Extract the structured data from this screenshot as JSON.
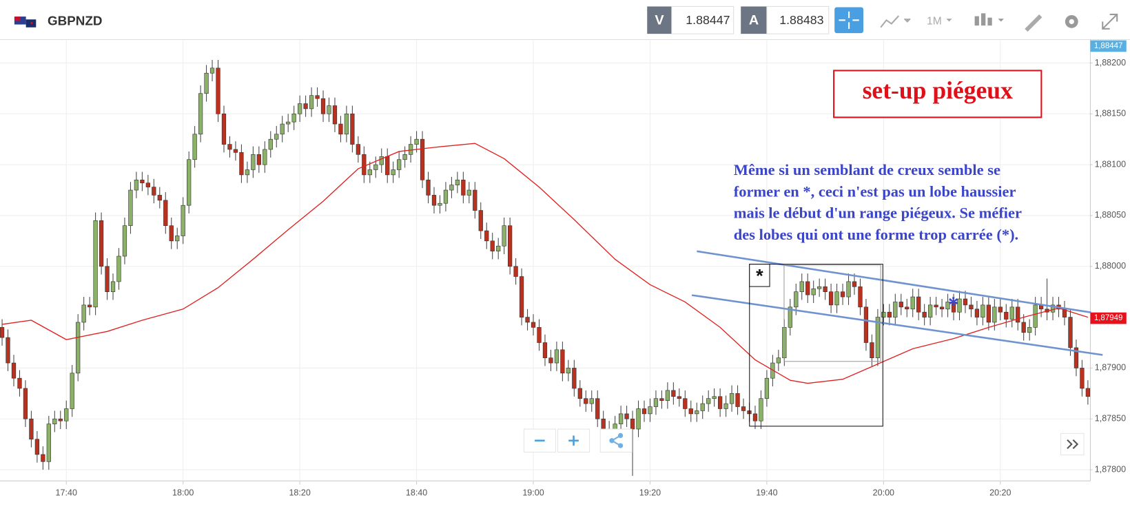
{
  "toolbar": {
    "symbol": "GBPNZD",
    "bid_label": "V",
    "bid": 1.88447,
    "ask_label": "A",
    "ask": 1.88483,
    "timeframe": "1M"
  },
  "chart_data": {
    "type": "candlestick",
    "title": "set-up piégeux",
    "annotation_lines": [
      "Même si un semblant de creux semble se",
      "former en *, ceci n'est pas un lobe haussier",
      "mais le début d'un range piégeux.  Se méfier",
      "des lobes qui ont une forme trop carrée (*)."
    ],
    "box_marker": "*",
    "blue_marker": "*",
    "up_color": "#8cb26a",
    "down_color": "#b8321f",
    "grid": true,
    "xlim": [
      1048.64,
      1235.3
    ],
    "ylim": [
      1.87789,
      1.88223
    ],
    "xticks": [
      {
        "value": 1060,
        "label": "17:40"
      },
      {
        "value": 1080,
        "label": "18:00"
      },
      {
        "value": 1100,
        "label": "18:20"
      },
      {
        "value": 1120,
        "label": "18:40"
      },
      {
        "value": 1140,
        "label": "19:00"
      },
      {
        "value": 1160,
        "label": "19:20"
      },
      {
        "value": 1180,
        "label": "19:40"
      },
      {
        "value": 1200,
        "label": "20:00"
      },
      {
        "value": 1220,
        "label": "20:20"
      }
    ],
    "yticks": [
      {
        "value": 1.882,
        "label": "1,88200"
      },
      {
        "value": 1.8815,
        "label": "1,88150"
      },
      {
        "value": 1.881,
        "label": "1,88100"
      },
      {
        "value": 1.8805,
        "label": "1,88050"
      },
      {
        "value": 1.88,
        "label": "1,88000"
      },
      {
        "value": 1.879,
        "label": "1,87900"
      },
      {
        "value": 1.8785,
        "label": "1,87850"
      },
      {
        "value": 1.878,
        "label": "1,87800"
      }
    ],
    "price_tags": [
      {
        "value": 1.88447,
        "label": "1,88447",
        "color": "#5aaee0"
      },
      {
        "value": 1.87949,
        "label": "1,87949",
        "color": "#e8101a"
      }
    ],
    "x": [
      1049,
      1050,
      1051,
      1052,
      1053,
      1054,
      1055,
      1056,
      1057,
      1058,
      1059,
      1060,
      1061,
      1062,
      1063,
      1064,
      1065,
      1066,
      1067,
      1068,
      1069,
      1070,
      1071,
      1072,
      1073,
      1074,
      1075,
      1076,
      1077,
      1078,
      1079,
      1080,
      1081,
      1082,
      1083,
      1084,
      1085,
      1086,
      1087,
      1088,
      1089,
      1090,
      1091,
      1092,
      1093,
      1094,
      1095,
      1096,
      1097,
      1098,
      1099,
      1100,
      1101,
      1102,
      1103,
      1104,
      1105,
      1106,
      1107,
      1108,
      1109,
      1110,
      1111,
      1112,
      1113,
      1114,
      1115,
      1116,
      1117,
      1118,
      1119,
      1120,
      1121,
      1122,
      1123,
      1124,
      1125,
      1126,
      1127,
      1128,
      1129,
      1130,
      1131,
      1132,
      1133,
      1134,
      1135,
      1136,
      1137,
      1138,
      1139,
      1140,
      1141,
      1142,
      1143,
      1144,
      1145,
      1146,
      1147,
      1148,
      1149,
      1150,
      1151,
      1152,
      1153,
      1154,
      1155,
      1156,
      1157,
      1158,
      1159,
      1160,
      1161,
      1162,
      1163,
      1164,
      1165,
      1166,
      1167,
      1168,
      1169,
      1170,
      1171,
      1172,
      1173,
      1174,
      1175,
      1176,
      1177,
      1178,
      1179,
      1180,
      1181,
      1182,
      1183,
      1184,
      1185,
      1186,
      1187,
      1188,
      1189,
      1190,
      1191,
      1192,
      1193,
      1194,
      1195,
      1196,
      1197,
      1198,
      1199,
      1200,
      1201,
      1202,
      1203,
      1204,
      1205,
      1206,
      1207,
      1208,
      1209,
      1210,
      1211,
      1212,
      1213,
      1214,
      1215,
      1216,
      1217,
      1218,
      1219,
      1220,
      1221,
      1222,
      1223,
      1224,
      1225,
      1226,
      1227,
      1228,
      1229,
      1230,
      1231,
      1232,
      1233,
      1234,
      1235
    ],
    "open": [
      1.8794,
      1.8793,
      1.87905,
      1.8789,
      1.8788,
      1.8785,
      1.8783,
      1.87815,
      1.87808,
      1.87845,
      1.8785,
      1.87848,
      1.8786,
      1.87895,
      1.87945,
      1.87962,
      1.8796,
      1.88045,
      1.88,
      1.87975,
      1.87985,
      1.8801,
      1.8804,
      1.88075,
      1.88085,
      1.88082,
      1.88078,
      1.8807,
      1.88065,
      1.8804,
      1.88025,
      1.8803,
      1.8806,
      1.88105,
      1.8813,
      1.8817,
      1.8819,
      1.88195,
      1.8815,
      1.8812,
      1.88115,
      1.88112,
      1.8809,
      1.88095,
      1.8811,
      1.881,
      1.88115,
      1.88125,
      1.8813,
      1.8814,
      1.88142,
      1.8815,
      1.8816,
      1.88155,
      1.88168,
      1.88165,
      1.8815,
      1.88158,
      1.8814,
      1.8813,
      1.8815,
      1.8812,
      1.8811,
      1.8809,
      1.88095,
      1.881,
      1.88108,
      1.8809,
      1.88095,
      1.88105,
      1.8811,
      1.8812,
      1.88125,
      1.88085,
      1.8807,
      1.8806,
      1.88062,
      1.88075,
      1.8808,
      1.88085,
      1.8807,
      1.88075,
      1.88055,
      1.88035,
      1.88025,
      1.88015,
      1.8802,
      1.8804,
      1.88,
      1.8799,
      1.8795,
      1.87945,
      1.8794,
      1.87925,
      1.8791,
      1.87905,
      1.87918,
      1.87895,
      1.879,
      1.8788,
      1.8787,
      1.87865,
      1.8787,
      1.8785,
      1.8784,
      1.87835,
      1.87845,
      1.87855,
      1.8785,
      1.8784,
      1.8786,
      1.87855,
      1.87862,
      1.8787,
      1.87868,
      1.87878,
      1.87872,
      1.8787,
      1.8786,
      1.87855,
      1.87858,
      1.87865,
      1.8787,
      1.87872,
      1.8786,
      1.87865,
      1.87875,
      1.87862,
      1.87858,
      1.87855,
      1.87848,
      1.8787,
      1.8789,
      1.87905,
      1.8791,
      1.8794,
      1.8796,
      1.87975,
      1.87985,
      1.87972,
      1.87978,
      1.8798,
      1.87975,
      1.87962,
      1.87975,
      1.8797,
      1.87985,
      1.8798,
      1.8796,
      1.87925,
      1.8791,
      1.8795,
      1.87955,
      1.8795,
      1.87965,
      1.8796,
      1.87958,
      1.8797,
      1.87955,
      1.8795,
      1.87962,
      1.8796,
      1.87958,
      1.87965,
      1.87955,
      1.87968,
      1.87962,
      1.87958,
      1.8795,
      1.87962,
      1.87945,
      1.8796,
      1.87955,
      1.87948,
      1.8796,
      1.87945,
      1.87935,
      1.8794,
      1.87962,
      1.87958,
      1.87955,
      1.87962,
      1.87958,
      1.8795,
      1.8792,
      1.879,
      1.8788
    ],
    "high": [
      1.87948,
      1.87938,
      1.87913,
      1.87898,
      1.87888,
      1.87858,
      1.87838,
      1.87823,
      1.87853,
      1.87858,
      1.87858,
      1.87868,
      1.87903,
      1.87953,
      1.8797,
      1.8797,
      1.88053,
      1.88053,
      1.88008,
      1.87993,
      1.88018,
      1.88048,
      1.88083,
      1.88093,
      1.88093,
      1.8809,
      1.88086,
      1.88078,
      1.88073,
      1.88048,
      1.88038,
      1.88068,
      1.88113,
      1.88138,
      1.88178,
      1.88198,
      1.88203,
      1.88203,
      1.88158,
      1.88128,
      1.88123,
      1.8812,
      1.88103,
      1.88118,
      1.88118,
      1.88123,
      1.88133,
      1.88138,
      1.88148,
      1.8815,
      1.88158,
      1.88168,
      1.88168,
      1.88176,
      1.88176,
      1.88173,
      1.88166,
      1.88166,
      1.88148,
      1.88158,
      1.88158,
      1.88128,
      1.88118,
      1.88103,
      1.88108,
      1.88116,
      1.88116,
      1.88103,
      1.88113,
      1.88118,
      1.88128,
      1.88133,
      1.88133,
      1.88093,
      1.88078,
      1.8807,
      1.88083,
      1.88088,
      1.88093,
      1.88093,
      1.88083,
      1.88083,
      1.88063,
      1.88043,
      1.88033,
      1.88028,
      1.88048,
      1.88048,
      1.88008,
      1.87998,
      1.87958,
      1.87953,
      1.87948,
      1.87933,
      1.87918,
      1.87926,
      1.87926,
      1.87908,
      1.87908,
      1.87888,
      1.87878,
      1.87878,
      1.87878,
      1.87858,
      1.87848,
      1.87853,
      1.87863,
      1.87863,
      1.87858,
      1.87868,
      1.87868,
      1.8787,
      1.87878,
      1.87878,
      1.87886,
      1.87886,
      1.8788,
      1.87878,
      1.87868,
      1.87866,
      1.87873,
      1.87878,
      1.8788,
      1.8788,
      1.87873,
      1.87883,
      1.87883,
      1.8787,
      1.87866,
      1.87863,
      1.87878,
      1.87898,
      1.87913,
      1.87918,
      1.87948,
      1.87968,
      1.87983,
      1.87993,
      1.87993,
      1.87986,
      1.87988,
      1.87988,
      1.87983,
      1.87983,
      1.87983,
      1.87993,
      1.87993,
      1.87988,
      1.87968,
      1.87933,
      1.87958,
      1.87963,
      1.87963,
      1.87973,
      1.87973,
      1.87968,
      1.87978,
      1.87978,
      1.87963,
      1.8797,
      1.8797,
      1.87968,
      1.87973,
      1.87973,
      1.87976,
      1.87976,
      1.8797,
      1.87966,
      1.8797,
      1.8797,
      1.87968,
      1.87968,
      1.87963,
      1.87968,
      1.87968,
      1.87953,
      1.87948,
      1.8797,
      1.8797,
      1.87988,
      1.8797,
      1.8797,
      1.87966,
      1.87958,
      1.87928,
      1.87908,
      1.87888
    ],
    "low": [
      1.87922,
      1.87897,
      1.87882,
      1.87872,
      1.87842,
      1.87822,
      1.87807,
      1.878,
      1.878,
      1.87837,
      1.8784,
      1.8784,
      1.87852,
      1.87887,
      1.87937,
      1.87952,
      1.87952,
      1.87992,
      1.87967,
      1.87967,
      1.87977,
      1.88002,
      1.88032,
      1.88067,
      1.88074,
      1.8807,
      1.88062,
      1.88057,
      1.88032,
      1.88017,
      1.88017,
      1.88022,
      1.88052,
      1.88097,
      1.88122,
      1.88162,
      1.88182,
      1.88142,
      1.88112,
      1.88107,
      1.88104,
      1.88082,
      1.88082,
      1.88087,
      1.88092,
      1.88092,
      1.88107,
      1.88117,
      1.88122,
      1.88132,
      1.88134,
      1.88142,
      1.88147,
      1.88147,
      1.88157,
      1.88142,
      1.88142,
      1.88132,
      1.88122,
      1.88122,
      1.88112,
      1.88102,
      1.88082,
      1.88082,
      1.88087,
      1.88092,
      1.88082,
      1.88082,
      1.88087,
      1.88097,
      1.88102,
      1.88112,
      1.88077,
      1.88062,
      1.88052,
      1.88052,
      1.88054,
      1.88067,
      1.88072,
      1.88062,
      1.88062,
      1.88047,
      1.88027,
      1.88017,
      1.88007,
      1.88007,
      1.88012,
      1.87992,
      1.87982,
      1.87942,
      1.87937,
      1.87932,
      1.87917,
      1.87902,
      1.87897,
      1.87897,
      1.87887,
      1.87887,
      1.87872,
      1.87862,
      1.87857,
      1.87857,
      1.87842,
      1.87832,
      1.87827,
      1.87827,
      1.87837,
      1.87842,
      1.87794,
      1.87832,
      1.87847,
      1.87847,
      1.87854,
      1.8786,
      1.8786,
      1.87864,
      1.87862,
      1.87852,
      1.87847,
      1.87847,
      1.8785,
      1.87857,
      1.87862,
      1.87852,
      1.87852,
      1.87857,
      1.87854,
      1.8785,
      1.87847,
      1.8784,
      1.8784,
      1.87862,
      1.87882,
      1.87897,
      1.87902,
      1.87932,
      1.87952,
      1.87967,
      1.87964,
      1.87964,
      1.8797,
      1.87967,
      1.87954,
      1.87954,
      1.87962,
      1.87962,
      1.87972,
      1.87952,
      1.87917,
      1.87902,
      1.87902,
      1.87942,
      1.87942,
      1.87942,
      1.87952,
      1.8795,
      1.8795,
      1.87947,
      1.87942,
      1.87942,
      1.87952,
      1.8795,
      1.8795,
      1.87947,
      1.87947,
      1.87954,
      1.8795,
      1.87942,
      1.87942,
      1.87937,
      1.87937,
      1.87947,
      1.8794,
      1.8794,
      1.87937,
      1.87927,
      1.87927,
      1.87932,
      1.8795,
      1.87947,
      1.87947,
      1.8795,
      1.87942,
      1.87912,
      1.87892,
      1.87872,
      1.87864
    ],
    "close": [
      1.8793,
      1.87905,
      1.8789,
      1.8788,
      1.8785,
      1.8783,
      1.87815,
      1.87808,
      1.87845,
      1.8785,
      1.87848,
      1.8786,
      1.87895,
      1.87945,
      1.87962,
      1.8796,
      1.88045,
      1.88,
      1.87975,
      1.87985,
      1.8801,
      1.8804,
      1.88075,
      1.88085,
      1.88082,
      1.88078,
      1.8807,
      1.88065,
      1.8804,
      1.88025,
      1.8803,
      1.8806,
      1.88105,
      1.8813,
      1.8817,
      1.8819,
      1.88195,
      1.8815,
      1.8812,
      1.88115,
      1.88112,
      1.8809,
      1.88095,
      1.8811,
      1.881,
      1.88115,
      1.88125,
      1.8813,
      1.8814,
      1.88142,
      1.8815,
      1.8816,
      1.88155,
      1.88168,
      1.88165,
      1.8815,
      1.88158,
      1.8814,
      1.8813,
      1.8815,
      1.8812,
      1.8811,
      1.8809,
      1.88095,
      1.881,
      1.88108,
      1.8809,
      1.88095,
      1.88105,
      1.8811,
      1.8812,
      1.88125,
      1.88085,
      1.8807,
      1.8806,
      1.88062,
      1.88075,
      1.8808,
      1.88085,
      1.8807,
      1.88075,
      1.88055,
      1.88035,
      1.88025,
      1.88015,
      1.8802,
      1.8804,
      1.88,
      1.8799,
      1.8795,
      1.87945,
      1.8794,
      1.87925,
      1.8791,
      1.87905,
      1.87918,
      1.87895,
      1.879,
      1.8788,
      1.8787,
      1.87865,
      1.8787,
      1.8785,
      1.8784,
      1.87835,
      1.87845,
      1.87855,
      1.8785,
      1.8784,
      1.8786,
      1.87855,
      1.87862,
      1.8787,
      1.87868,
      1.87878,
      1.87872,
      1.8787,
      1.8786,
      1.87855,
      1.87858,
      1.87865,
      1.8787,
      1.87872,
      1.8786,
      1.87865,
      1.87875,
      1.87862,
      1.87858,
      1.87855,
      1.87848,
      1.8787,
      1.8789,
      1.87905,
      1.8791,
      1.8794,
      1.8796,
      1.87975,
      1.87985,
      1.87972,
      1.87978,
      1.8798,
      1.87975,
      1.87962,
      1.87975,
      1.8797,
      1.87985,
      1.8798,
      1.8796,
      1.87925,
      1.8791,
      1.8795,
      1.87955,
      1.8795,
      1.87965,
      1.8796,
      1.87958,
      1.8797,
      1.87955,
      1.8795,
      1.87962,
      1.8796,
      1.87958,
      1.87965,
      1.87955,
      1.87968,
      1.87962,
      1.87958,
      1.8795,
      1.87962,
      1.87945,
      1.8796,
      1.87955,
      1.87948,
      1.8796,
      1.87945,
      1.87935,
      1.8794,
      1.87962,
      1.87958,
      1.87955,
      1.87962,
      1.87958,
      1.8795,
      1.8792,
      1.879,
      1.8788,
      1.87872
    ],
    "moving_average": {
      "color": "#e02020",
      "x": [
        1049,
        1054,
        1060,
        1067,
        1073,
        1080,
        1086,
        1092,
        1098,
        1104,
        1110,
        1117,
        1123,
        1130,
        1135,
        1141,
        1147,
        1154,
        1160,
        1166,
        1172,
        1178,
        1184,
        1187,
        1193,
        1199,
        1205,
        1212,
        1218,
        1224,
        1230,
        1235
      ],
      "values": [
        1.87943,
        1.87947,
        1.87928,
        1.87936,
        1.87947,
        1.87958,
        1.87979,
        1.88007,
        1.88036,
        1.88064,
        1.88096,
        1.88113,
        1.88117,
        1.88121,
        1.88106,
        1.88078,
        1.88046,
        1.88007,
        1.87982,
        1.87965,
        1.8794,
        1.87908,
        1.87888,
        1.87885,
        1.87889,
        1.87904,
        1.87919,
        1.87929,
        1.8794,
        1.8795,
        1.87959,
        1.8795
      ]
    }
  }
}
